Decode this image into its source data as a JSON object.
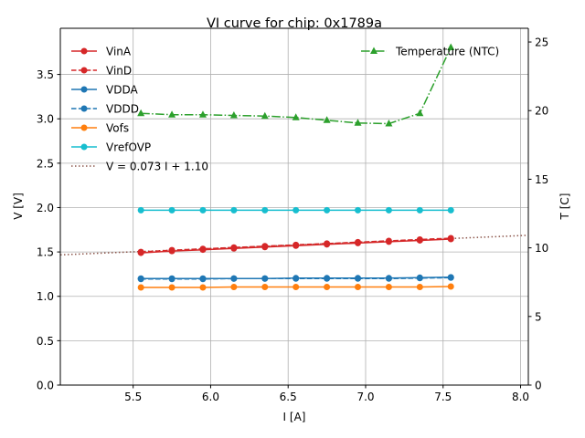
{
  "chart_data": {
    "type": "line",
    "title": "VI curve for chip: 0x1789a",
    "xlabel": "I [A]",
    "ylabel": "V [V]",
    "y2label": "T [C]",
    "xlim": [
      5.03,
      8.05
    ],
    "ylim": [
      0.0,
      4.02
    ],
    "y2lim": [
      0,
      26.0
    ],
    "grid": true,
    "xticks": [
      5.5,
      6.0,
      6.5,
      7.0,
      7.5,
      8.0
    ],
    "xtick_labels": [
      "5.5",
      "6.0",
      "6.5",
      "7.0",
      "7.5",
      "8.0"
    ],
    "yticks": [
      0.0,
      0.5,
      1.0,
      1.5,
      2.0,
      2.5,
      3.0,
      3.5
    ],
    "ytick_labels": [
      "0.0",
      "0.5",
      "1.0",
      "1.5",
      "2.0",
      "2.5",
      "3.0",
      "3.5"
    ],
    "y2ticks": [
      0,
      5,
      10,
      15,
      20,
      25
    ],
    "y2tick_labels": [
      "0",
      "5",
      "10",
      "15",
      "20",
      "25"
    ],
    "x": [
      5.55,
      5.75,
      5.95,
      6.15,
      6.35,
      6.55,
      6.75,
      6.95,
      7.15,
      7.35,
      7.55
    ],
    "series": [
      {
        "name": "VinA",
        "axis": "left",
        "color": "#d62728",
        "style": "solid",
        "marker": "circle",
        "values": [
          1.49,
          1.51,
          1.525,
          1.54,
          1.555,
          1.57,
          1.585,
          1.6,
          1.615,
          1.63,
          1.645
        ]
      },
      {
        "name": "VinD",
        "axis": "left",
        "color": "#d62728",
        "style": "dashed",
        "marker": "circle",
        "values": [
          1.5,
          1.52,
          1.535,
          1.55,
          1.565,
          1.58,
          1.595,
          1.61,
          1.625,
          1.64,
          1.655
        ]
      },
      {
        "name": "VDDA",
        "axis": "left",
        "color": "#1f77b4",
        "style": "solid",
        "marker": "circle",
        "values": [
          1.2,
          1.2,
          1.2,
          1.2,
          1.2,
          1.205,
          1.205,
          1.205,
          1.205,
          1.21,
          1.215
        ]
      },
      {
        "name": "VDDD",
        "axis": "left",
        "color": "#1f77b4",
        "style": "dashed",
        "marker": "circle",
        "values": [
          1.195,
          1.195,
          1.195,
          1.2,
          1.2,
          1.2,
          1.2,
          1.2,
          1.2,
          1.205,
          1.21
        ]
      },
      {
        "name": "Vofs",
        "axis": "left",
        "color": "#ff7f0e",
        "style": "solid",
        "marker": "circle",
        "values": [
          1.1,
          1.1,
          1.1,
          1.105,
          1.105,
          1.105,
          1.105,
          1.105,
          1.105,
          1.105,
          1.11
        ]
      },
      {
        "name": "VrefOVP",
        "axis": "left",
        "color": "#17becf",
        "style": "solid",
        "marker": "circle",
        "values": [
          1.97,
          1.97,
          1.97,
          1.97,
          1.97,
          1.97,
          1.97,
          1.97,
          1.97,
          1.97,
          1.97
        ]
      },
      {
        "name": "Temperature (NTC)",
        "axis": "right",
        "color": "#2ca02c",
        "style": "dashdot",
        "marker": "triangle",
        "values": [
          19.8,
          19.7,
          19.7,
          19.65,
          19.6,
          19.5,
          19.3,
          19.1,
          19.05,
          19.8,
          24.6
        ]
      }
    ],
    "fit": {
      "name": "V = 0.073 I + 1.10",
      "slope": 0.073,
      "intercept": 1.1,
      "color": "#8c564b",
      "style": "dotted"
    },
    "legend_left": [
      "VinA",
      "VinD",
      "VDDA",
      "VDDD",
      "Vofs",
      "VrefOVP",
      "V = 0.073 I + 1.10"
    ],
    "legend_right": [
      "Temperature (NTC)"
    ],
    "legend_placement": [
      "top-left",
      "top-right"
    ]
  }
}
